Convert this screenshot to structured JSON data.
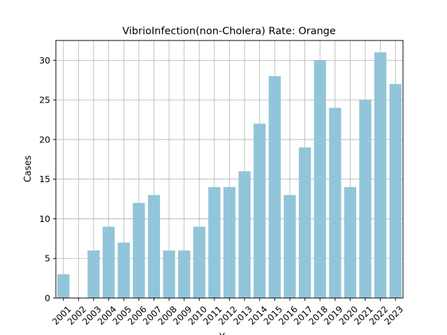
{
  "chart_data": {
    "type": "bar",
    "title": "VibrioInfection(non-Cholera) Rate: Orange",
    "xlabel": "Y",
    "ylabel": "Cases",
    "categories": [
      "2001",
      "2002",
      "2003",
      "2004",
      "2005",
      "2006",
      "2007",
      "2008",
      "2009",
      "2010",
      "2011",
      "2012",
      "2013",
      "2014",
      "2015",
      "2016",
      "2017",
      "2018",
      "2019",
      "2020",
      "2021",
      "2022",
      "2023"
    ],
    "values": [
      3,
      0,
      6,
      9,
      7,
      12,
      13,
      6,
      6,
      9,
      14,
      14,
      16,
      22,
      28,
      13,
      19,
      30,
      24,
      14,
      25,
      31,
      27
    ],
    "ylim": [
      0,
      32.5
    ],
    "yticks": [
      0,
      5,
      10,
      15,
      20,
      25,
      30
    ],
    "grid": true,
    "bar_color": "#92c5d9",
    "grid_color": "#b0b0b0",
    "x_tick_rotation_deg": -45
  }
}
